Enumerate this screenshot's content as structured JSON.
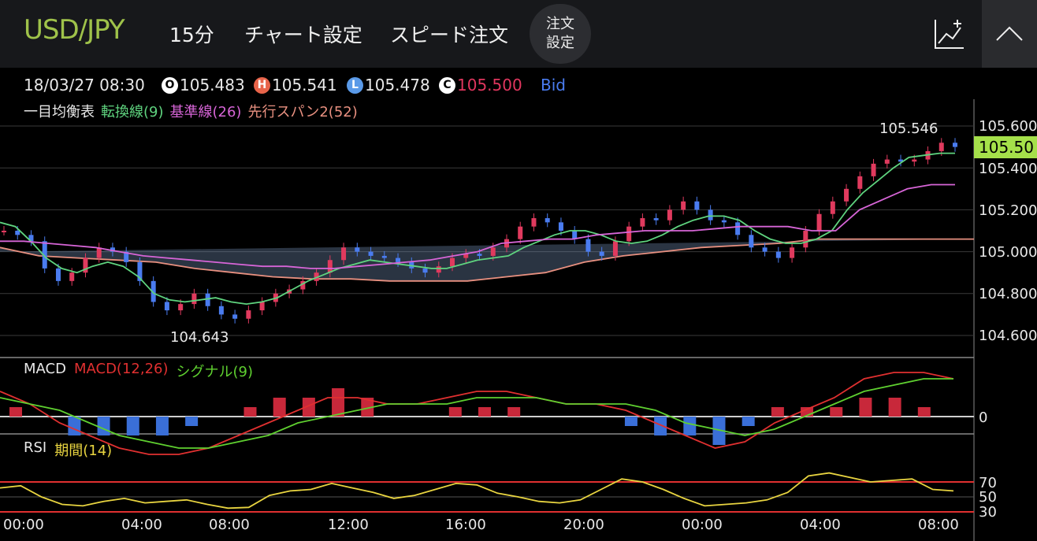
{
  "header": {
    "pair": "USD/JPY",
    "timeframe": "15分",
    "chart_settings": "チャート設定",
    "speed_order": "スピード注文",
    "order_settings_line1": "注文",
    "order_settings_line2": "設定"
  },
  "info": {
    "datetime": "18/03/27 08:30",
    "open_badge": "O",
    "open": "105.483",
    "high_badge": "H",
    "high": "105.541",
    "low_badge": "L",
    "low": "105.478",
    "close_badge": "C",
    "close": "105.500",
    "side": "Bid"
  },
  "ichimoku": {
    "name": "一目均衡表",
    "tenkan": "転換線(9)",
    "kijun": "基準線(26)",
    "span2": "先行スパン2(52)"
  },
  "macd": {
    "name": "MACD",
    "macd": "MACD(12,26)",
    "signal": "シグナル(9)",
    "zero_label": "0"
  },
  "rsi": {
    "name": "RSI",
    "period": "期間(14)",
    "levels": [
      "70",
      "50",
      "30"
    ]
  },
  "price_axis": [
    "105.600",
    "105.400",
    "105.200",
    "105.000",
    "104.800",
    "104.600"
  ],
  "current_price_label": "105.50",
  "annotations": {
    "max": "105.546",
    "min": "104.643"
  },
  "time_axis": [
    "00:00",
    "04:00",
    "08:00",
    "12:00",
    "16:00",
    "20:00",
    "00:00",
    "04:00",
    "08:00"
  ],
  "colors": {
    "pair": "#9fc24a",
    "tenkan": "#5fd47f",
    "kijun": "#d765d7",
    "span2": "#e89080",
    "span1": "#a6c8f0",
    "up_candle": "#e03a5e",
    "down_candle": "#4a7cf0",
    "macd_line": "#e03030",
    "signal_line": "#5fd030",
    "rsi_line": "#e8d440",
    "current_price": "#a5e04a"
  },
  "chart_data": {
    "type": "line",
    "x_labels": [
      "00:00",
      "04:00",
      "08:00",
      "12:00",
      "16:00",
      "20:00",
      "00:00",
      "04:00",
      "08:00"
    ],
    "ylim": [
      104.5,
      105.7
    ],
    "close": [
      105.1,
      105.08,
      105.05,
      104.92,
      104.86,
      104.9,
      104.97,
      105.02,
      105.0,
      104.95,
      104.86,
      104.76,
      104.72,
      104.75,
      104.8,
      104.74,
      104.7,
      104.68,
      104.72,
      104.76,
      104.8,
      104.82,
      104.86,
      104.9,
      104.96,
      105.02,
      105.0,
      104.98,
      104.97,
      104.95,
      104.92,
      104.9,
      104.93,
      104.97,
      104.99,
      104.98,
      105.02,
      105.06,
      105.12,
      105.16,
      105.14,
      105.1,
      105.06,
      105.0,
      104.98,
      105.05,
      105.12,
      105.16,
      105.15,
      105.2,
      105.24,
      105.2,
      105.15,
      105.14,
      105.08,
      105.02,
      105.0,
      104.97,
      105.02,
      105.1,
      105.18,
      105.24,
      105.3,
      105.36,
      105.42,
      105.44,
      105.43,
      105.44,
      105.48,
      105.52,
      105.5
    ],
    "ichimoku_tenkan": [
      105.14,
      105.12,
      105.05,
      104.97,
      104.92,
      104.9,
      104.93,
      104.95,
      104.93,
      104.88,
      104.8,
      104.77,
      104.76,
      104.77,
      104.78,
      104.76,
      104.75,
      104.76,
      104.78,
      104.82,
      104.86,
      104.89,
      104.92,
      104.94,
      104.96,
      104.95,
      104.94,
      104.93,
      104.92,
      104.92,
      104.94,
      104.96,
      104.97,
      104.98,
      105.02,
      105.05,
      105.08,
      105.1,
      105.1,
      105.08,
      105.05,
      105.04,
      105.05,
      105.08,
      105.12,
      105.15,
      105.17,
      105.17,
      105.15,
      105.1,
      105.06,
      105.04,
      105.04,
      105.06,
      105.1,
      105.2,
      105.28,
      105.34,
      105.4,
      105.45,
      105.46,
      105.47,
      105.47
    ],
    "ichimoku_kijun": [
      105.05,
      105.05,
      105.04,
      105.03,
      105.02,
      105.0,
      104.98,
      104.97,
      104.96,
      104.95,
      104.94,
      104.93,
      104.93,
      104.92,
      104.92,
      104.93,
      104.94,
      104.95,
      104.96,
      104.98,
      105.0,
      105.04,
      105.05,
      105.06,
      105.06,
      105.08,
      105.09,
      105.1,
      105.1,
      105.1,
      105.11,
      105.12,
      105.12,
      105.12,
      105.1,
      105.1,
      105.2,
      105.25,
      105.3,
      105.32,
      105.32
    ],
    "ichimoku_span2": [
      105.02,
      104.98,
      104.97,
      104.96,
      104.95,
      104.92,
      104.9,
      104.88,
      104.87,
      104.87,
      104.86,
      104.86,
      104.86,
      104.88,
      104.9,
      104.95,
      104.98,
      105.0,
      105.02,
      105.03,
      105.04,
      105.06,
      105.06,
      105.06,
      105.06,
      105.06
    ],
    "macd": [
      0.04,
      0.02,
      -0.01,
      -0.03,
      -0.05,
      -0.06,
      -0.06,
      -0.05,
      -0.03,
      -0.01,
      0.01,
      0.03,
      0.03,
      0.02,
      0.02,
      0.03,
      0.04,
      0.04,
      0.03,
      0.02,
      0.02,
      0.01,
      -0.01,
      -0.03,
      -0.05,
      -0.04,
      -0.01,
      0.01,
      0.03,
      0.06,
      0.07,
      0.07,
      0.06
    ],
    "signal": [
      0.03,
      0.02,
      0.01,
      -0.01,
      -0.03,
      -0.04,
      -0.05,
      -0.05,
      -0.04,
      -0.03,
      -0.01,
      0.0,
      0.01,
      0.02,
      0.02,
      0.02,
      0.03,
      0.03,
      0.03,
      0.02,
      0.02,
      0.02,
      0.01,
      -0.01,
      -0.02,
      -0.03,
      -0.02,
      0.0,
      0.02,
      0.04,
      0.05,
      0.06,
      0.06
    ],
    "rsi": [
      62,
      65,
      50,
      40,
      38,
      44,
      48,
      42,
      44,
      46,
      40,
      35,
      36,
      52,
      58,
      60,
      68,
      62,
      56,
      48,
      52,
      60,
      68,
      66,
      55,
      50,
      44,
      42,
      46,
      60,
      74,
      70,
      60,
      48,
      38,
      40,
      42,
      46,
      56,
      78,
      82,
      76,
      70,
      72,
      74,
      60,
      58
    ]
  }
}
